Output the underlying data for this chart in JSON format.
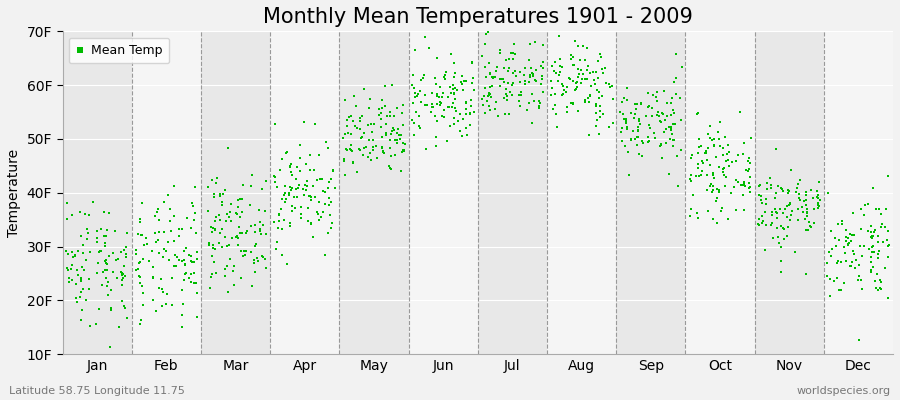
{
  "title": "Monthly Mean Temperatures 1901 - 2009",
  "ylabel": "Temperature",
  "ytick_labels": [
    "10F",
    "20F",
    "30F",
    "40F",
    "50F",
    "60F",
    "70F"
  ],
  "ytick_values": [
    10,
    20,
    30,
    40,
    50,
    60,
    70
  ],
  "ylim": [
    10,
    70
  ],
  "months": [
    "Jan",
    "Feb",
    "Mar",
    "Apr",
    "May",
    "Jun",
    "Jul",
    "Aug",
    "Sep",
    "Oct",
    "Nov",
    "Dec"
  ],
  "month_means_F": [
    27,
    27,
    33,
    40,
    50,
    57,
    61,
    60,
    53,
    44,
    37,
    30
  ],
  "month_stds_F": [
    6,
    6,
    5,
    5,
    4,
    4,
    4,
    4,
    4,
    4,
    4,
    5
  ],
  "n_years": 109,
  "marker_color": "#00bb00",
  "marker_size": 3,
  "background_color": "#f2f2f2",
  "band_color_dark": "#e8e8e8",
  "band_color_light": "#f5f5f5",
  "grid_color": "#999999",
  "title_fontsize": 15,
  "axis_fontsize": 10,
  "tick_fontsize": 10,
  "footer_left": "Latitude 58.75 Longitude 11.75",
  "footer_right": "worldspecies.org",
  "legend_label": "Mean Temp"
}
